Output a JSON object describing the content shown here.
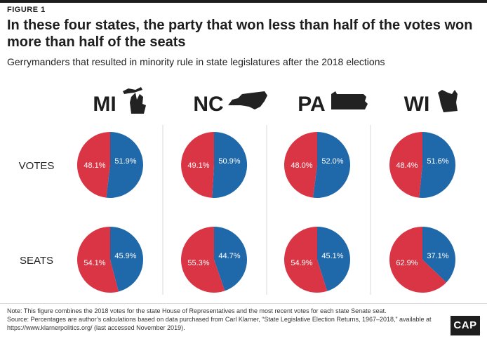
{
  "figure_label": "FIGURE 1",
  "title": "In these four states, the party that won less than half of the votes won more than half of the seats",
  "subtitle": "Gerrymanders that resulted in minority rule in state legislatures after the 2018 elections",
  "colors": {
    "red": "#d93545",
    "blue": "#1f68aa",
    "divider": "#d9d9d9",
    "state_icon": "#222222"
  },
  "chart_data": {
    "type": "pie",
    "title": "In these four states, the party that won less than half of the votes won more than half of the seats",
    "row_labels": [
      "VOTES",
      "SEATS"
    ],
    "states": [
      {
        "name": "MI",
        "icon": "michigan-shape-icon",
        "votes": {
          "red": 48.1,
          "blue": 51.9,
          "red_label": "48.1%",
          "blue_label": "51.9%"
        },
        "seats": {
          "red": 54.1,
          "blue": 45.9,
          "red_label": "54.1%",
          "blue_label": "45.9%"
        }
      },
      {
        "name": "NC",
        "icon": "north-carolina-shape-icon",
        "votes": {
          "red": 49.1,
          "blue": 50.9,
          "red_label": "49.1%",
          "blue_label": "50.9%"
        },
        "seats": {
          "red": 55.3,
          "blue": 44.7,
          "red_label": "55.3%",
          "blue_label": "44.7%"
        }
      },
      {
        "name": "PA",
        "icon": "pennsylvania-shape-icon",
        "votes": {
          "red": 48.0,
          "blue": 52.0,
          "red_label": "48.0%",
          "blue_label": "52.0%"
        },
        "seats": {
          "red": 54.9,
          "blue": 45.1,
          "red_label": "54.9%",
          "blue_label": "45.1%"
        }
      },
      {
        "name": "WI",
        "icon": "wisconsin-shape-icon",
        "votes": {
          "red": 48.4,
          "blue": 51.6,
          "red_label": "48.4%",
          "blue_label": "51.6%"
        },
        "seats": {
          "red": 62.9,
          "blue": 37.1,
          "red_label": "62.9%",
          "blue_label": "37.1%"
        }
      }
    ]
  },
  "notes": [
    "Note: This figure combines the 2018 votes for the state House of Representatives and the most recent votes for each state Senate seat.",
    "Source: Percentages are author’s calculations based on data purchased from Carl Klarner, “State Legislative Election Returns, 1967–2018,” available at",
    "https://www.klarnerpolitics.org/ (last accessed November 2019)."
  ],
  "logo": "CAP"
}
